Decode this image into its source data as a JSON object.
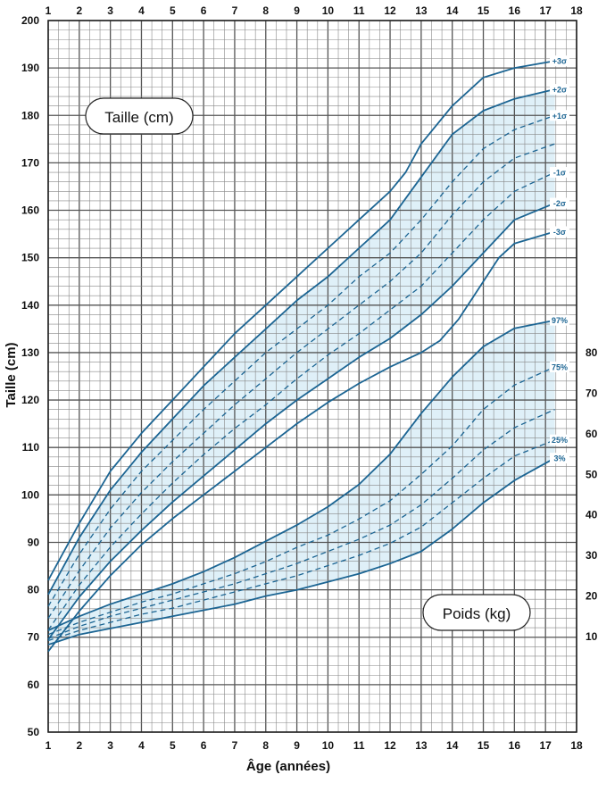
{
  "chart_data": {
    "type": "line",
    "xlabel": "Âge (années)",
    "ylabel": "Taille (cm)",
    "xlim": [
      1,
      18
    ],
    "x_ticks": [
      "1",
      "2",
      "3",
      "4",
      "5",
      "6",
      "7",
      "8",
      "9",
      "10",
      "11",
      "12",
      "13",
      "14",
      "15",
      "16",
      "17",
      "18"
    ],
    "height_axis": {
      "ylim": [
        50,
        200
      ],
      "ticks": [
        "50",
        "60",
        "70",
        "80",
        "90",
        "100",
        "110",
        "120",
        "130",
        "140",
        "150",
        "160",
        "170",
        "180",
        "190",
        "200"
      ]
    },
    "weight_axis": {
      "ylim": [
        0,
        80
      ],
      "ticks": [
        "10",
        "20",
        "30",
        "40",
        "50",
        "60",
        "70",
        "80"
      ]
    },
    "panel_labels": {
      "height": "Taille (cm)",
      "weight": "Poids (kg)"
    },
    "height_series": [
      {
        "name": "+3σ",
        "style": "solid",
        "points": [
          [
            1,
            82
          ],
          [
            2,
            94
          ],
          [
            3,
            105
          ],
          [
            4,
            113
          ],
          [
            5,
            120
          ],
          [
            6,
            127
          ],
          [
            7,
            134
          ],
          [
            8,
            140
          ],
          [
            9,
            146
          ],
          [
            10,
            152
          ],
          [
            11,
            158
          ],
          [
            12,
            164
          ],
          [
            12.5,
            168
          ],
          [
            13,
            174
          ],
          [
            14,
            182
          ],
          [
            15,
            188
          ],
          [
            16,
            190
          ],
          [
            17.3,
            191.5
          ]
        ]
      },
      {
        "name": "+2σ",
        "style": "solid",
        "points": [
          [
            1,
            79
          ],
          [
            2,
            91
          ],
          [
            3,
            101
          ],
          [
            4,
            109
          ],
          [
            5,
            116
          ],
          [
            6,
            123
          ],
          [
            7,
            129
          ],
          [
            8,
            135
          ],
          [
            9,
            141
          ],
          [
            10,
            146
          ],
          [
            11,
            152
          ],
          [
            12,
            158
          ],
          [
            13,
            167
          ],
          [
            14,
            176
          ],
          [
            15,
            181
          ],
          [
            16,
            183.5
          ],
          [
            17.3,
            185.5
          ]
        ]
      },
      {
        "name": "+1σ",
        "style": "dashed",
        "points": [
          [
            1,
            76.5
          ],
          [
            2,
            87.5
          ],
          [
            3,
            97
          ],
          [
            4,
            105
          ],
          [
            5,
            111.5
          ],
          [
            6,
            118
          ],
          [
            7,
            124
          ],
          [
            8,
            130
          ],
          [
            9,
            135
          ],
          [
            10,
            140
          ],
          [
            11,
            146
          ],
          [
            12,
            151
          ],
          [
            13,
            158
          ],
          [
            14,
            166
          ],
          [
            15,
            173
          ],
          [
            16,
            177
          ],
          [
            17.3,
            180
          ]
        ]
      },
      {
        "name": "",
        "style": "dashed",
        "points": [
          [
            1,
            74
          ],
          [
            2,
            84
          ],
          [
            3,
            93
          ],
          [
            4,
            100.5
          ],
          [
            5,
            107
          ],
          [
            6,
            113
          ],
          [
            7,
            119
          ],
          [
            8,
            124.5
          ],
          [
            9,
            130
          ],
          [
            10,
            135
          ],
          [
            11,
            140
          ],
          [
            12,
            145
          ],
          [
            13,
            151
          ],
          [
            14,
            159
          ],
          [
            15,
            166
          ],
          [
            16,
            171
          ],
          [
            17.3,
            174
          ]
        ]
      },
      {
        "name": "-1σ",
        "style": "dashed",
        "points": [
          [
            1,
            71.5
          ],
          [
            2,
            81
          ],
          [
            3,
            89
          ],
          [
            4,
            96
          ],
          [
            5,
            102.5
          ],
          [
            6,
            108.5
          ],
          [
            7,
            114
          ],
          [
            8,
            119
          ],
          [
            9,
            124.5
          ],
          [
            10,
            129.5
          ],
          [
            11,
            134
          ],
          [
            12,
            139
          ],
          [
            13,
            144
          ],
          [
            14,
            151
          ],
          [
            15,
            158
          ],
          [
            16,
            164
          ],
          [
            17.3,
            168
          ]
        ]
      },
      {
        "name": "-2σ",
        "style": "solid",
        "points": [
          [
            1,
            69.5
          ],
          [
            2,
            78.5
          ],
          [
            3,
            86
          ],
          [
            4,
            92.5
          ],
          [
            5,
            98.5
          ],
          [
            6,
            104
          ],
          [
            7,
            109.5
          ],
          [
            8,
            115
          ],
          [
            9,
            120
          ],
          [
            10,
            124.5
          ],
          [
            11,
            129
          ],
          [
            12,
            133
          ],
          [
            13,
            138
          ],
          [
            14,
            144
          ],
          [
            15,
            151
          ],
          [
            16,
            158
          ],
          [
            17.3,
            161.5
          ]
        ]
      },
      {
        "name": "-3σ",
        "style": "solid",
        "points": [
          [
            1,
            67
          ],
          [
            2,
            75.5
          ],
          [
            3,
            83
          ],
          [
            4,
            89.5
          ],
          [
            5,
            95
          ],
          [
            6,
            100
          ],
          [
            7,
            105
          ],
          [
            8,
            110
          ],
          [
            9,
            115
          ],
          [
            10,
            119.5
          ],
          [
            11,
            123.5
          ],
          [
            12,
            127
          ],
          [
            13,
            130
          ],
          [
            13.6,
            132.5
          ],
          [
            14.2,
            137
          ],
          [
            14.8,
            143
          ],
          [
            15.5,
            150
          ],
          [
            16,
            153
          ],
          [
            17.3,
            155.5
          ]
        ]
      }
    ],
    "weight_series": [
      {
        "name": "97%",
        "style": "solid",
        "points": [
          [
            1,
            11.5
          ],
          [
            2,
            15
          ],
          [
            3,
            18
          ],
          [
            4,
            20.5
          ],
          [
            5,
            23
          ],
          [
            6,
            26
          ],
          [
            7,
            29.5
          ],
          [
            8,
            33.5
          ],
          [
            9,
            37.5
          ],
          [
            10,
            42
          ],
          [
            11,
            47.5
          ],
          [
            12,
            55
          ],
          [
            13,
            65
          ],
          [
            14,
            74
          ],
          [
            15,
            81.5
          ],
          [
            16,
            86
          ],
          [
            17.3,
            88
          ]
        ]
      },
      {
        "name": "75%",
        "style": "dashed",
        "points": [
          [
            1,
            10.5
          ],
          [
            2,
            13.5
          ],
          [
            3,
            16
          ],
          [
            4,
            18.5
          ],
          [
            5,
            20.5
          ],
          [
            6,
            23
          ],
          [
            7,
            25.5
          ],
          [
            8,
            28.5
          ],
          [
            9,
            32
          ],
          [
            10,
            35
          ],
          [
            11,
            39
          ],
          [
            12,
            43.5
          ],
          [
            13,
            50
          ],
          [
            14,
            57
          ],
          [
            15,
            66
          ],
          [
            16,
            72
          ],
          [
            17.3,
            76.5
          ]
        ]
      },
      {
        "name": "",
        "style": "dashed",
        "points": [
          [
            1,
            9.5
          ],
          [
            2,
            12.5
          ],
          [
            3,
            15
          ],
          [
            4,
            17
          ],
          [
            5,
            19
          ],
          [
            6,
            21
          ],
          [
            7,
            23
          ],
          [
            8,
            25.5
          ],
          [
            9,
            28
          ],
          [
            10,
            31
          ],
          [
            11,
            34
          ],
          [
            12,
            37.5
          ],
          [
            13,
            42.5
          ],
          [
            14,
            49
          ],
          [
            15,
            56
          ],
          [
            16,
            61.5
          ],
          [
            17.3,
            66
          ]
        ]
      },
      {
        "name": "25%",
        "style": "dashed",
        "points": [
          [
            1,
            9
          ],
          [
            2,
            11.5
          ],
          [
            3,
            13.5
          ],
          [
            4,
            15.5
          ],
          [
            5,
            17
          ],
          [
            6,
            19
          ],
          [
            7,
            21
          ],
          [
            8,
            23
          ],
          [
            9,
            25
          ],
          [
            10,
            27.5
          ],
          [
            11,
            30
          ],
          [
            12,
            33
          ],
          [
            13,
            37
          ],
          [
            14,
            43
          ],
          [
            15,
            49
          ],
          [
            16,
            54.5
          ],
          [
            17.3,
            58.5
          ]
        ]
      },
      {
        "name": "3%",
        "style": "solid",
        "points": [
          [
            1,
            8
          ],
          [
            2,
            10.5
          ],
          [
            3,
            12
          ],
          [
            4,
            13.5
          ],
          [
            5,
            15
          ],
          [
            6,
            16.5
          ],
          [
            7,
            18
          ],
          [
            8,
            20
          ],
          [
            9,
            21.5
          ],
          [
            10,
            23.5
          ],
          [
            11,
            25.5
          ],
          [
            12,
            28
          ],
          [
            13,
            31
          ],
          [
            14,
            36.5
          ],
          [
            15,
            43
          ],
          [
            16,
            48.5
          ],
          [
            17.3,
            54
          ]
        ]
      }
    ],
    "colors": {
      "curve": "#1c6593",
      "band": "#dff0f8",
      "grid": "#555555",
      "grid_minor": "#888888",
      "text": "#111111"
    }
  }
}
